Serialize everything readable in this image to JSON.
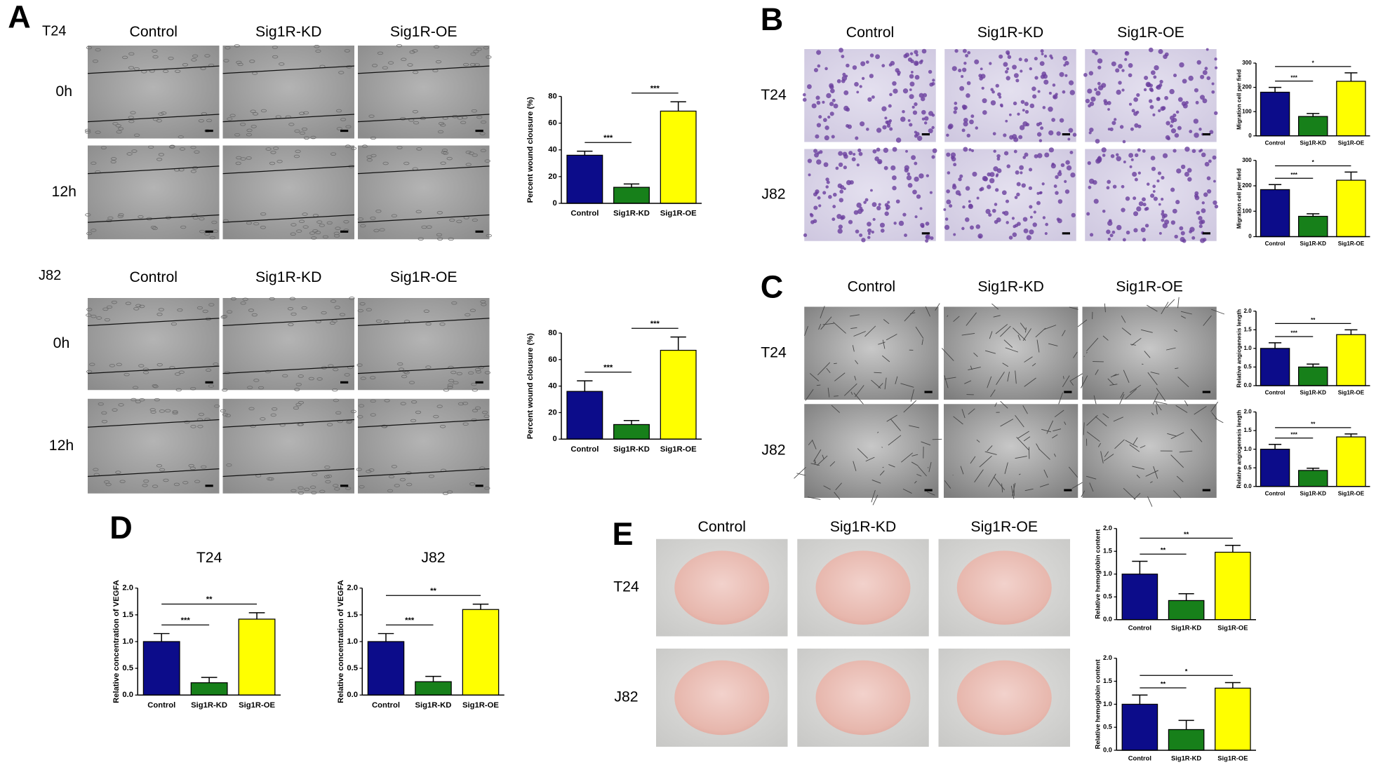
{
  "panels": {
    "A": {
      "label": "A",
      "groups": [
        {
          "cell_line": "T24",
          "columns": [
            "Control",
            "Sig1R-KD",
            "Sig1R-OE"
          ],
          "rows": [
            "0h",
            "12h"
          ]
        },
        {
          "cell_line": "J82",
          "columns": [
            "Control",
            "Sig1R-KD",
            "Sig1R-OE"
          ],
          "rows": [
            "0h",
            "12h"
          ]
        }
      ]
    },
    "B": {
      "label": "B",
      "columns": [
        "Control",
        "Sig1R-KD",
        "Sig1R-OE"
      ],
      "rows": [
        "T24",
        "J82"
      ]
    },
    "C": {
      "label": "C",
      "columns": [
        "Control",
        "Sig1R-KD",
        "Sig1R-OE"
      ],
      "rows": [
        "T24",
        "J82"
      ]
    },
    "D": {
      "label": "D"
    },
    "E": {
      "label": "E",
      "columns": [
        "Control",
        "Sig1R-KD",
        "Sig1R-OE"
      ],
      "rows": [
        "T24",
        "J82"
      ]
    }
  },
  "chart_data": [
    {
      "type": "bar",
      "ylabel": "Percent wound clousure (%)",
      "categories": [
        "Control",
        "Sig1R-KD",
        "Sig1R-OE"
      ],
      "values": [
        36,
        12,
        69
      ],
      "errors": [
        3,
        2.5,
        7
      ],
      "colors": [
        "#0c0c8a",
        "#17801a",
        "#ffff00"
      ],
      "ylim": [
        0,
        80
      ],
      "yticks": [
        0,
        20,
        40,
        60,
        80
      ],
      "annotations": [
        {
          "text": "***",
          "between": [
            "Control",
            "Sig1R-KD"
          ]
        },
        {
          "text": "***",
          "between": [
            "Sig1R-KD",
            "Sig1R-OE"
          ]
        }
      ]
    },
    {
      "type": "bar",
      "ylabel": "Percent wound clousure (%)",
      "categories": [
        "Control",
        "Sig1R-KD",
        "Sig1R-OE"
      ],
      "values": [
        36,
        11,
        67
      ],
      "errors": [
        8,
        3,
        10
      ],
      "colors": [
        "#0c0c8a",
        "#17801a",
        "#ffff00"
      ],
      "ylim": [
        0,
        80
      ],
      "yticks": [
        0,
        20,
        40,
        60,
        80
      ],
      "annotations": [
        {
          "text": "***",
          "between": [
            "Control",
            "Sig1R-KD"
          ]
        },
        {
          "text": "***",
          "between": [
            "Sig1R-KD",
            "Sig1R-OE"
          ]
        }
      ]
    },
    {
      "type": "bar",
      "ylabel": "Migration cell per field",
      "categories": [
        "Control",
        "Sig1R-KD",
        "Sig1R-OE"
      ],
      "values": [
        180,
        80,
        225
      ],
      "errors": [
        20,
        12,
        35
      ],
      "colors": [
        "#0c0c8a",
        "#17801a",
        "#ffff00"
      ],
      "ylim": [
        0,
        300
      ],
      "yticks": [
        0,
        100,
        200,
        300
      ],
      "annotations": [
        {
          "text": "***",
          "between": [
            "Control",
            "Sig1R-KD"
          ]
        },
        {
          "text": "*",
          "between": [
            "Control",
            "Sig1R-OE"
          ]
        }
      ]
    },
    {
      "type": "bar",
      "ylabel": "Migration cell per field",
      "categories": [
        "Control",
        "Sig1R-KD",
        "Sig1R-OE"
      ],
      "values": [
        185,
        80,
        222
      ],
      "errors": [
        20,
        10,
        32
      ],
      "colors": [
        "#0c0c8a",
        "#17801a",
        "#ffff00"
      ],
      "ylim": [
        0,
        300
      ],
      "yticks": [
        0,
        100,
        200,
        300
      ],
      "annotations": [
        {
          "text": "***",
          "between": [
            "Control",
            "Sig1R-KD"
          ]
        },
        {
          "text": "*",
          "between": [
            "Control",
            "Sig1R-OE"
          ]
        }
      ]
    },
    {
      "type": "bar",
      "ylabel": "Relative angiogenesis length",
      "categories": [
        "Control",
        "Sig1R-KD",
        "Sig1R-OE"
      ],
      "values": [
        1.0,
        0.5,
        1.37
      ],
      "errors": [
        0.15,
        0.08,
        0.13
      ],
      "colors": [
        "#0c0c8a",
        "#17801a",
        "#ffff00"
      ],
      "ylim": [
        0,
        2
      ],
      "yticks": [
        {
          "value": 0,
          "label": "0.0"
        },
        0.5,
        {
          "value": 1,
          "label": "1.0"
        },
        1.5,
        {
          "value": 2,
          "label": "2.0"
        }
      ],
      "annotations": [
        {
          "text": "***",
          "between": [
            "Control",
            "Sig1R-KD"
          ]
        },
        {
          "text": "**",
          "between": [
            "Control",
            "Sig1R-OE"
          ]
        }
      ]
    },
    {
      "type": "bar",
      "ylabel": "Relative angiogenesis length",
      "categories": [
        "Control",
        "Sig1R-KD",
        "Sig1R-OE"
      ],
      "values": [
        1.0,
        0.43,
        1.33
      ],
      "errors": [
        0.13,
        0.06,
        0.08
      ],
      "colors": [
        "#0c0c8a",
        "#17801a",
        "#ffff00"
      ],
      "ylim": [
        0,
        2
      ],
      "yticks": [
        {
          "value": 0,
          "label": "0.0"
        },
        0.5,
        {
          "value": 1,
          "label": "1.0"
        },
        1.5,
        {
          "value": 2,
          "label": "2.0"
        }
      ],
      "annotations": [
        {
          "text": "***",
          "between": [
            "Control",
            "Sig1R-KD"
          ]
        },
        {
          "text": "**",
          "between": [
            "Control",
            "Sig1R-OE"
          ]
        }
      ]
    },
    {
      "type": "bar",
      "title": "T24",
      "ylabel": "Relative concentration of VEGFA",
      "categories": [
        "Control",
        "Sig1R-KD",
        "Sig1R-OE"
      ],
      "values": [
        1.0,
        0.23,
        1.42
      ],
      "errors": [
        0.15,
        0.1,
        0.12
      ],
      "colors": [
        "#0c0c8a",
        "#17801a",
        "#ffff00"
      ],
      "ylim": [
        0,
        2
      ],
      "yticks": [
        {
          "value": 0,
          "label": "0.0"
        },
        0.5,
        {
          "value": 1,
          "label": "1.0"
        },
        1.5,
        {
          "value": 2,
          "label": "2.0"
        }
      ],
      "annotations": [
        {
          "text": "***",
          "between": [
            "Control",
            "Sig1R-KD"
          ]
        },
        {
          "text": "**",
          "between": [
            "Control",
            "Sig1R-OE"
          ]
        }
      ]
    },
    {
      "type": "bar",
      "title": "J82",
      "ylabel": "Relative concentration of VEGFA",
      "categories": [
        "Control",
        "Sig1R-KD",
        "Sig1R-OE"
      ],
      "values": [
        1.0,
        0.25,
        1.6
      ],
      "errors": [
        0.15,
        0.1,
        0.1
      ],
      "colors": [
        "#0c0c8a",
        "#17801a",
        "#ffff00"
      ],
      "ylim": [
        0,
        2
      ],
      "yticks": [
        {
          "value": 0,
          "label": "0.0"
        },
        0.5,
        {
          "value": 1,
          "label": "1.0"
        },
        1.5,
        {
          "value": 2,
          "label": "2.0"
        }
      ],
      "annotations": [
        {
          "text": "***",
          "between": [
            "Control",
            "Sig1R-KD"
          ]
        },
        {
          "text": "**",
          "between": [
            "Control",
            "Sig1R-OE"
          ]
        }
      ]
    },
    {
      "type": "bar",
      "ylabel": "Relative hemoglobin content",
      "categories": [
        "Control",
        "Sig1R-KD",
        "Sig1R-OE"
      ],
      "values": [
        1.0,
        0.42,
        1.48
      ],
      "errors": [
        0.28,
        0.15,
        0.15
      ],
      "colors": [
        "#0c0c8a",
        "#17801a",
        "#ffff00"
      ],
      "ylim": [
        0,
        2
      ],
      "yticks": [
        {
          "value": 0,
          "label": "0.0"
        },
        0.5,
        {
          "value": 1,
          "label": "1.0"
        },
        1.5,
        {
          "value": 2,
          "label": "2.0"
        }
      ],
      "annotations": [
        {
          "text": "**",
          "between": [
            "Control",
            "Sig1R-KD"
          ]
        },
        {
          "text": "**",
          "between": [
            "Control",
            "Sig1R-OE"
          ]
        }
      ]
    },
    {
      "type": "bar",
      "ylabel": "Relative hemoglobin content",
      "categories": [
        "Control",
        "Sig1R-KD",
        "Sig1R-OE"
      ],
      "values": [
        1.0,
        0.45,
        1.35
      ],
      "errors": [
        0.2,
        0.2,
        0.12
      ],
      "colors": [
        "#0c0c8a",
        "#17801a",
        "#ffff00"
      ],
      "ylim": [
        0,
        2
      ],
      "yticks": [
        {
          "value": 0,
          "label": "0.0"
        },
        0.5,
        {
          "value": 1,
          "label": "1.0"
        },
        1.5,
        {
          "value": 2,
          "label": "2.0"
        }
      ],
      "annotations": [
        {
          "text": "**",
          "between": [
            "Control",
            "Sig1R-KD"
          ]
        },
        {
          "text": "*",
          "between": [
            "Control",
            "Sig1R-OE"
          ]
        }
      ]
    }
  ]
}
